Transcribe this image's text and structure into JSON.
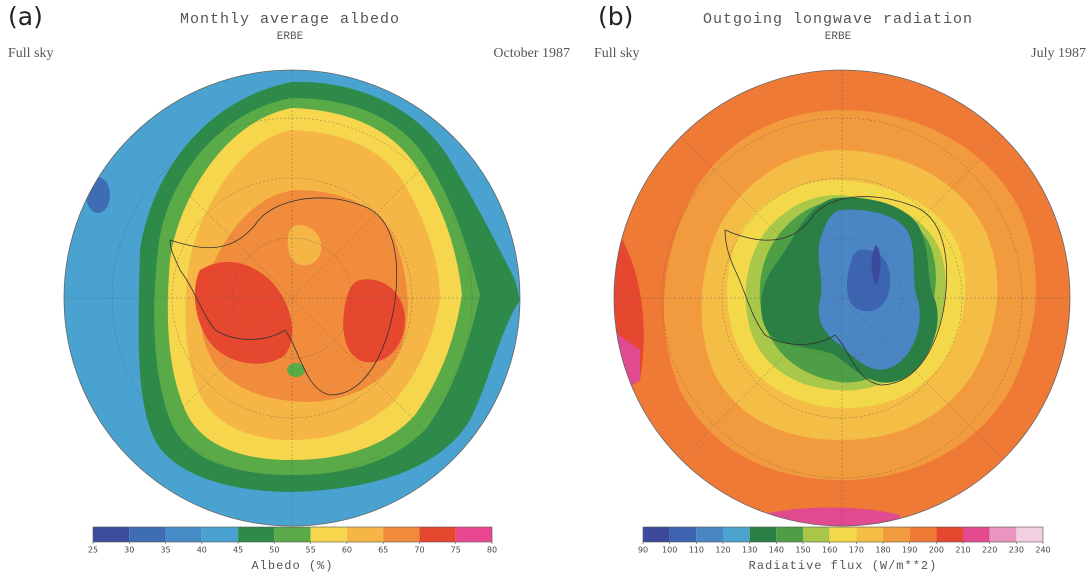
{
  "panels": [
    {
      "label": "(a)",
      "title": "Monthly average albedo",
      "source": "ERBE",
      "sky": "Full sky",
      "date": "October 1987",
      "colorbar": {
        "label": "Albedo (%)",
        "ticks": [
          25,
          30,
          35,
          40,
          45,
          50,
          55,
          60,
          65,
          70,
          75,
          80
        ],
        "colors": [
          "#3b4c9c",
          "#3e6db4",
          "#468cc6",
          "#4aa2d0",
          "#2e8a48",
          "#5aab48",
          "#f6d64c",
          "#f6b646",
          "#f08c3b",
          "#e6472f",
          "#e8478f"
        ]
      }
    },
    {
      "label": "(b)",
      "title": "Outgoing longwave radiation",
      "source": "ERBE",
      "sky": "Full sky",
      "date": "July 1987",
      "colorbar": {
        "label": "Radiative flux (W/m**2)",
        "ticks": [
          90,
          100,
          110,
          120,
          130,
          140,
          150,
          160,
          170,
          180,
          190,
          200,
          210,
          220,
          230,
          240
        ],
        "colors": [
          "#3b4a9a",
          "#3c64b0",
          "#4a86c4",
          "#4ba3ce",
          "#2a7f45",
          "#4e9e45",
          "#a9c84a",
          "#f3d84a",
          "#f4bd45",
          "#f29a3e",
          "#ef7a36",
          "#e5482f",
          "#e14a8e",
          "#ea94c0",
          "#f3cfe2"
        ]
      }
    }
  ]
}
